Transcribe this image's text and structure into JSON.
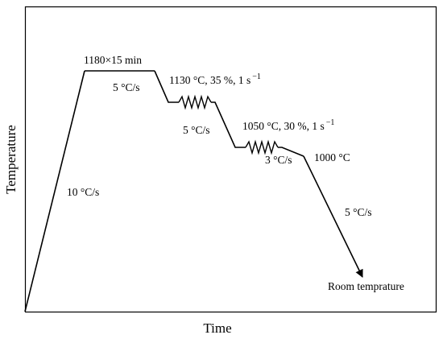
{
  "axes": {
    "xlabel": "Time",
    "ylabel": "Temperature"
  },
  "annotations": {
    "soak": "1180×15 min",
    "heating_rate": "10 °C/s",
    "cool_rate_1": "5 °C/s",
    "deform_1": "1130 °C, 35 %, 1 s",
    "deform_1_unit": "−1",
    "cool_rate_2": "5 °C/s",
    "deform_2": "1050 °C, 30 %, 1 s",
    "deform_2_unit": "−1",
    "cool_rate_3": "3 °C/s",
    "finish_temp": "1000 °C",
    "cool_rate_4": "5 °C/s",
    "end_label": "Room temprature"
  },
  "colors": {
    "line": "#000000",
    "background": "#ffffff"
  }
}
